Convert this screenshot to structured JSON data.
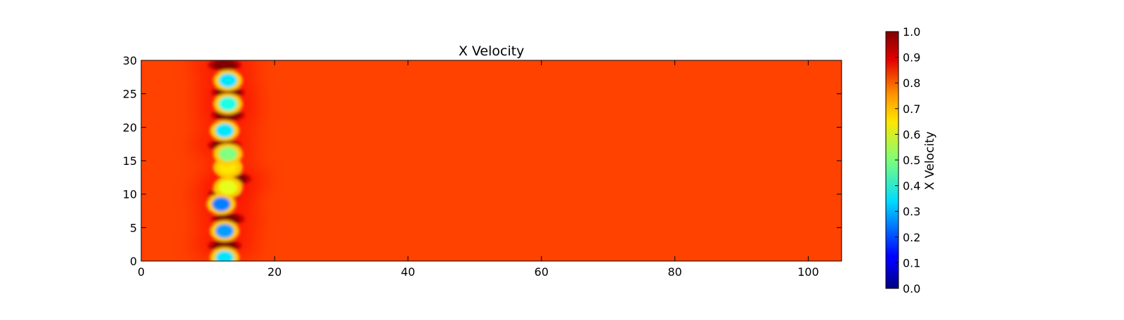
{
  "chart_data": {
    "type": "heatmap",
    "title": "X Velocity",
    "xlabel": "",
    "ylabel": "",
    "xlim": [
      0,
      105
    ],
    "ylim": [
      0,
      30
    ],
    "x_ticks": [
      0,
      20,
      40,
      60,
      80,
      100
    ],
    "y_ticks": [
      0,
      5,
      10,
      15,
      20,
      25,
      30
    ],
    "x_tick_labels": [
      "0",
      "20",
      "40",
      "60",
      "80",
      "100"
    ],
    "y_tick_labels": [
      "0",
      "5",
      "10",
      "15",
      "20",
      "25",
      "30"
    ],
    "colormap": "jet",
    "background_value": 0.81,
    "colorbar": {
      "label": "X Velocity",
      "range": [
        0.0,
        1.0
      ],
      "ticks": [
        0.0,
        0.1,
        0.2,
        0.3,
        0.4,
        0.5,
        0.6,
        0.7,
        0.8,
        0.9,
        1.0
      ],
      "tick_labels": [
        "0.0",
        "0.1",
        "0.2",
        "0.3",
        "0.4",
        "0.5",
        "0.6",
        "0.7",
        "0.8",
        "0.9",
        "1.0"
      ]
    },
    "features": [
      {
        "kind": "wake",
        "x": 12.5,
        "y": 0.5,
        "value": 0.35
      },
      {
        "kind": "wake",
        "x": 12.5,
        "y": 4.5,
        "value": 0.28
      },
      {
        "kind": "wake",
        "x": 12.0,
        "y": 8.5,
        "value": 0.25
      },
      {
        "kind": "wake",
        "x": 13.0,
        "y": 11.0,
        "value": 0.6
      },
      {
        "kind": "wake",
        "x": 13.0,
        "y": 14.0,
        "value": 0.65
      },
      {
        "kind": "wake",
        "x": 13.0,
        "y": 16.0,
        "value": 0.5
      },
      {
        "kind": "wake",
        "x": 12.5,
        "y": 19.5,
        "value": 0.35
      },
      {
        "kind": "wake",
        "x": 13.0,
        "y": 23.5,
        "value": 0.4
      },
      {
        "kind": "wake",
        "x": 13.0,
        "y": 27.0,
        "value": 0.35
      },
      {
        "kind": "jet",
        "x": 12.5,
        "y": 2.3,
        "value": 1.0
      },
      {
        "kind": "jet",
        "x": 13.0,
        "y": 6.3,
        "value": 1.0
      },
      {
        "kind": "jet",
        "x": 12.5,
        "y": 10.0,
        "value": 1.0
      },
      {
        "kind": "jet",
        "x": 14.0,
        "y": 12.3,
        "value": 1.0
      },
      {
        "kind": "jet",
        "x": 12.5,
        "y": 17.3,
        "value": 1.0
      },
      {
        "kind": "jet",
        "x": 13.0,
        "y": 21.8,
        "value": 1.0
      },
      {
        "kind": "jet",
        "x": 13.0,
        "y": 25.2,
        "value": 1.0
      },
      {
        "kind": "jet",
        "x": 12.5,
        "y": 29.3,
        "value": 1.0
      }
    ]
  }
}
